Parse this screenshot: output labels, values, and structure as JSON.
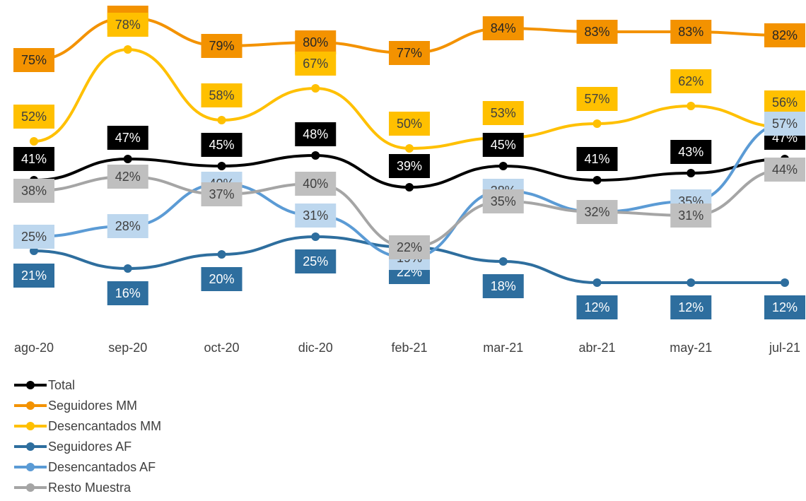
{
  "chart_data": {
    "type": "line",
    "categories": [
      "ago-20",
      "sep-20",
      "oct-20",
      "dic-20",
      "feb-21",
      "mar-21",
      "abr-21",
      "may-21",
      "jul-21"
    ],
    "series": [
      {
        "name": "Total",
        "color": "#000000",
        "values": [
          41,
          47,
          45,
          48,
          39,
          45,
          41,
          43,
          47
        ],
        "value_labels": [
          "41%",
          "47%",
          "45%",
          "48%",
          "39%",
          "45%",
          "41%",
          "43%",
          "47%"
        ]
      },
      {
        "name": "Seguidores MM",
        "color": "#F39200",
        "values": [
          75,
          87,
          79,
          80,
          77,
          84,
          83,
          83,
          82
        ],
        "value_labels": [
          "75%",
          "87%",
          "79%",
          "80%",
          "77%",
          "84%",
          "83%",
          "83%",
          "82%"
        ]
      },
      {
        "name": "Desencantados MM",
        "color": "#FFC000",
        "values": [
          52,
          78,
          58,
          67,
          50,
          53,
          57,
          62,
          56
        ],
        "value_labels": [
          "52%",
          "78%",
          "58%",
          "67%",
          "50%",
          "53%",
          "57%",
          "62%",
          "56%"
        ]
      },
      {
        "name": "Seguidores AF",
        "color": "#2E6E9E",
        "values": [
          21,
          16,
          20,
          25,
          22,
          18,
          12,
          12,
          12
        ],
        "value_labels": [
          "21%",
          "16%",
          "20%",
          "25%",
          "22%",
          "18%",
          "12%",
          "12%",
          "12%"
        ]
      },
      {
        "name": "Desencantados AF",
        "color": "#5B9BD5",
        "values": [
          25,
          28,
          40,
          31,
          19,
          38,
          32,
          35,
          57
        ],
        "value_labels": [
          "25%",
          "28%",
          "40%",
          "31%",
          "19%",
          "38%",
          "32%",
          "35%",
          "57%"
        ]
      },
      {
        "name": "Resto Muestra",
        "color": "#A5A5A5",
        "values": [
          38,
          42,
          37,
          40,
          22,
          35,
          32,
          31,
          44
        ],
        "value_labels": [
          "38%",
          "42%",
          "37%",
          "40%",
          "22%",
          "35%",
          "32%",
          "31%",
          "44%"
        ]
      }
    ],
    "legend": "bottom-left"
  }
}
